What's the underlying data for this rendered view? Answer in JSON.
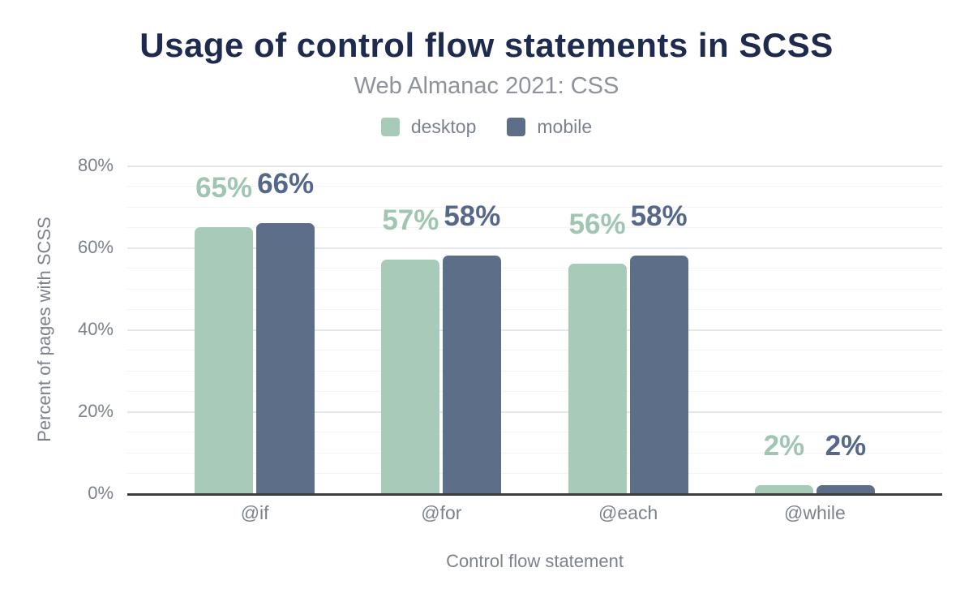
{
  "chart_data": {
    "type": "bar",
    "title": "Usage of control flow statements in SCSS",
    "subtitle": "Web Almanac 2021: CSS",
    "categories": [
      "@if",
      "@for",
      "@each",
      "@while"
    ],
    "series": [
      {
        "name": "desktop",
        "color": "#a7cbb8",
        "label_color": "#9fc6b1",
        "values": [
          65,
          57,
          56,
          2
        ]
      },
      {
        "name": "mobile",
        "color": "#5d6e89",
        "label_color": "#55678a",
        "values": [
          66,
          58,
          58,
          2
        ]
      }
    ],
    "value_label_format": "{value}%",
    "xlabel": "Control flow statement",
    "ylabel": "Percent of pages with SCSS",
    "ylim": [
      0,
      80
    ],
    "yticks": [
      {
        "value": 0,
        "label": "0%"
      },
      {
        "value": 20,
        "label": "20%"
      },
      {
        "value": 40,
        "label": "40%"
      },
      {
        "value": 60,
        "label": "60%"
      },
      {
        "value": 80,
        "label": "80%"
      }
    ],
    "minor_grid_step": 5,
    "grid": true,
    "legend_position": "top"
  },
  "colors": {
    "title": "#1f2b4e",
    "subtitle": "#8d929b",
    "axis_text": "#7b828c",
    "grid_major": "#e4e6e9",
    "grid_minor": "#f2f3f5",
    "axis_line": "#3a3b3e",
    "background": "#ffffff"
  }
}
